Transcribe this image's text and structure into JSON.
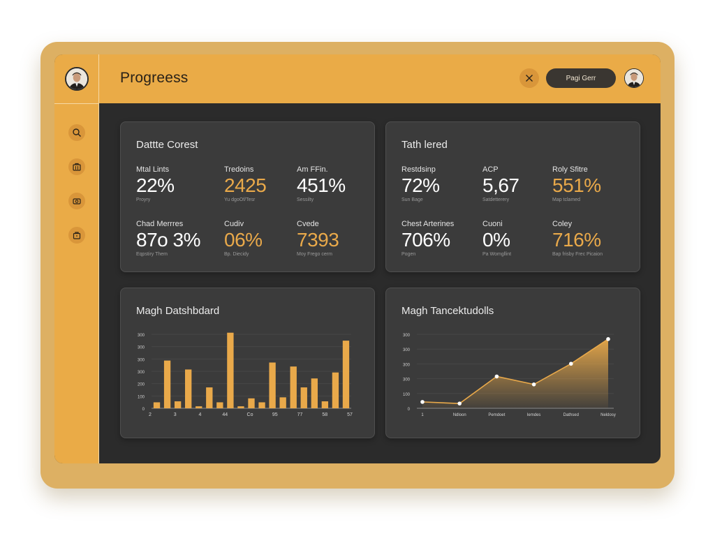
{
  "header": {
    "title": "Progreess",
    "pill_label": "Pagi Gerr"
  },
  "sidebar": {
    "icons": [
      "search-icon",
      "briefcase-icon",
      "camera-icon",
      "bag-icon"
    ]
  },
  "colors": {
    "accent": "#eaab47",
    "panel": "#3b3b3b",
    "background": "#2b2b2b"
  },
  "cards": [
    {
      "title": "Dattte Corest",
      "stats": [
        {
          "label": "Mtal Lints",
          "value": "22%",
          "sub": "Proyry",
          "accent": false
        },
        {
          "label": "Tredoins",
          "value": "2425",
          "sub": "Yu dgoOf/Tesr",
          "accent": true
        },
        {
          "label": "Am FFin.",
          "value": "451%",
          "sub": "Sessilty",
          "accent": false
        },
        {
          "label": "Chad Merrres",
          "value": "87o 3%",
          "sub": "Eqpstiry Them",
          "accent": false
        },
        {
          "label": "Cudiv",
          "value": "06%",
          "sub": "Bp. Diecidy",
          "accent": true
        },
        {
          "label": "Cvede",
          "value": "7393",
          "sub": "Moy Frego cerm",
          "accent": true
        }
      ]
    },
    {
      "title": "Tath lered",
      "stats": [
        {
          "label": "Restdsinp",
          "value": "72%",
          "sub": "Sun Bage",
          "accent": false
        },
        {
          "label": "ACP",
          "value": "5,67",
          "sub": "Satdetterery",
          "accent": false
        },
        {
          "label": "Roly Sfitre",
          "value": "551%",
          "sub": "Map tclamed",
          "accent": true
        },
        {
          "label": "Chest Arterines",
          "value": "706%",
          "sub": "Pogen",
          "accent": false
        },
        {
          "label": "Cuoni",
          "value": "0%",
          "sub": "Pa Womgllint",
          "accent": false
        },
        {
          "label": "Coley",
          "value": "716%",
          "sub": "Bap frisby Frec Picaion",
          "accent": true
        }
      ]
    }
  ],
  "chart_data": [
    {
      "type": "bar",
      "title": "Magh Datshbdard",
      "y_ticks": [
        "300",
        "300",
        "300",
        "300",
        "200",
        "100",
        "0"
      ],
      "x_ticks": [
        "2",
        "3",
        "4",
        "44",
        "Co",
        "95",
        "77",
        "58",
        "57"
      ],
      "values": [
        60,
        480,
        70,
        390,
        20,
        210,
        60,
        760,
        20,
        100,
        60,
        460,
        110,
        420,
        210,
        300,
        70,
        360,
        680
      ],
      "ylim": [
        0,
        800
      ],
      "color": "#e9a94a"
    },
    {
      "type": "area",
      "title": "Magh Tancektudolls",
      "y_ticks": [
        "300",
        "300",
        "300",
        "300",
        "100",
        "0"
      ],
      "x_ticks": [
        "1",
        "Ndloon",
        "Pemdoet",
        "Iemdes",
        "Dathsed",
        "Neldosy"
      ],
      "x": [
        0,
        1,
        2,
        3,
        4,
        5
      ],
      "values": [
        80,
        60,
        400,
        300,
        560,
        870
      ],
      "ylim": [
        0,
        1000
      ],
      "color": "#e9a94a"
    }
  ]
}
